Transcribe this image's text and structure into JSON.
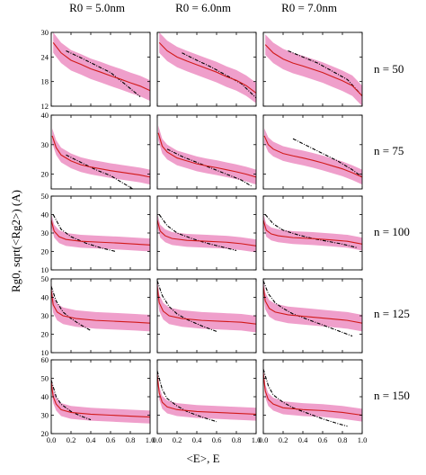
{
  "chart_data": {
    "type": "line",
    "col_titles": [
      "R0 = 5.0nm",
      "R0 = 6.0nm",
      "R0 = 7.0nm"
    ],
    "row_labels": [
      "n = 50",
      "n = 75",
      "n = 100",
      "n = 125",
      "n = 150"
    ],
    "xlabel": "<E>, E",
    "ylabel": "Rg0, sqrt(<Rg2>) (A)",
    "x_ticks": [
      0.0,
      0.2,
      0.4,
      0.6,
      0.8,
      1.0
    ],
    "xlim": [
      0,
      1
    ],
    "rows": [
      {
        "n": 50,
        "ylim": [
          12,
          30
        ],
        "yticks": [
          12,
          18,
          24,
          30
        ],
        "ytick_labels": [
          "12",
          "18",
          "24",
          "30"
        ]
      },
      {
        "n": 75,
        "ylim": [
          15,
          40
        ],
        "yticks": [
          20,
          30,
          40
        ],
        "ytick_labels": [
          "20",
          "30",
          "40"
        ]
      },
      {
        "n": 100,
        "ylim": [
          10,
          50
        ],
        "yticks": [
          10,
          20,
          30,
          40,
          50
        ],
        "ytick_labels": [
          "10",
          "20",
          "30",
          "40",
          "50"
        ]
      },
      {
        "n": 125,
        "ylim": [
          10,
          50
        ],
        "yticks": [
          10,
          20,
          30,
          40,
          50
        ],
        "ytick_labels": [
          "10",
          "20",
          "30",
          "40",
          "50"
        ]
      },
      {
        "n": 150,
        "ylim": [
          20,
          60
        ],
        "yticks": [
          20,
          30,
          40,
          50,
          60
        ],
        "ytick_labels": [
          "20",
          "30",
          "40",
          "50",
          "60"
        ]
      }
    ],
    "panels": [
      {
        "row": 0,
        "col": 0,
        "sim_x": [
          0.02,
          0.1,
          0.2,
          0.3,
          0.4,
          0.5,
          0.6,
          0.7,
          0.8,
          0.9,
          1.0
        ],
        "sim_y": [
          27.5,
          25,
          23.2,
          22.2,
          21.1,
          20.3,
          19.4,
          18.6,
          17.7,
          16.9,
          15.8
        ],
        "band_half": 2.5,
        "theory_x": [
          0.15,
          0.3,
          0.45,
          0.6,
          0.75,
          0.9
        ],
        "theory_y": [
          25.5,
          23.8,
          22,
          20.2,
          17.3,
          14.3
        ]
      },
      {
        "row": 0,
        "col": 1,
        "sim_x": [
          0.02,
          0.1,
          0.2,
          0.3,
          0.4,
          0.5,
          0.6,
          0.7,
          0.8,
          0.9,
          1.0
        ],
        "sim_y": [
          27.5,
          25.5,
          24,
          23,
          22.1,
          21.2,
          20.3,
          19.2,
          18.3,
          17,
          15.2
        ],
        "band_half": 2.5,
        "theory_x": [
          0.25,
          0.4,
          0.55,
          0.7,
          0.85,
          1.0
        ],
        "theory_y": [
          25,
          23.2,
          21.5,
          19.5,
          17.5,
          14
        ]
      },
      {
        "row": 0,
        "col": 2,
        "sim_x": [
          0.02,
          0.1,
          0.2,
          0.3,
          0.4,
          0.5,
          0.6,
          0.7,
          0.8,
          0.9,
          1.0
        ],
        "sim_y": [
          27,
          25,
          23.5,
          22.5,
          21.8,
          21,
          20.2,
          19.2,
          18.2,
          17,
          14.5
        ],
        "band_half": 2.5,
        "theory_x": [
          0.25,
          0.4,
          0.55,
          0.7,
          0.85,
          1.0
        ],
        "theory_y": [
          25.5,
          24,
          22.5,
          20.5,
          18.5,
          14.5
        ]
      },
      {
        "row": 1,
        "col": 0,
        "sim_x": [
          0.01,
          0.05,
          0.1,
          0.2,
          0.3,
          0.4,
          0.5,
          0.6,
          0.7,
          0.8,
          0.9,
          1.0
        ],
        "sim_y": [
          33,
          29,
          26.5,
          24.5,
          23.2,
          22.4,
          21.8,
          21.2,
          20.7,
          20.2,
          19.7,
          19
        ],
        "band_half": 2.5,
        "theory_x": [
          0.15,
          0.3,
          0.45,
          0.6,
          0.75,
          0.85
        ],
        "theory_y": [
          26.5,
          24,
          21.5,
          19.5,
          16.5,
          14.5
        ]
      },
      {
        "row": 1,
        "col": 1,
        "sim_x": [
          0.01,
          0.05,
          0.1,
          0.2,
          0.3,
          0.4,
          0.5,
          0.6,
          0.7,
          0.8,
          0.9,
          1.0
        ],
        "sim_y": [
          34,
          29.5,
          27.5,
          25.5,
          24.5,
          23.5,
          22.8,
          22.2,
          21.5,
          20.8,
          20,
          19
        ],
        "band_half": 2.5,
        "theory_x": [
          0.1,
          0.25,
          0.4,
          0.55,
          0.7,
          0.85,
          0.95
        ],
        "theory_y": [
          28.5,
          26,
          24,
          22,
          20,
          18,
          16
        ]
      },
      {
        "row": 1,
        "col": 2,
        "sim_x": [
          0.01,
          0.05,
          0.1,
          0.2,
          0.3,
          0.4,
          0.5,
          0.6,
          0.7,
          0.8,
          0.9,
          1.0
        ],
        "sim_y": [
          33,
          30,
          28.5,
          27,
          26.2,
          25.5,
          24.7,
          23.8,
          22.8,
          21.8,
          20.5,
          19
        ],
        "band_half": 2.5,
        "theory_x": [
          0.3,
          0.45,
          0.6,
          0.75,
          0.9,
          1.0
        ],
        "theory_y": [
          32,
          29.5,
          27,
          24.5,
          21.5,
          19
        ]
      },
      {
        "row": 2,
        "col": 0,
        "sim_x": [
          0.0,
          0.03,
          0.08,
          0.15,
          0.3,
          0.5,
          0.7,
          0.85,
          1.0
        ],
        "sim_y": [
          37,
          31,
          28,
          26.5,
          25.5,
          25,
          24.5,
          24,
          23.5
        ],
        "band_half": 3.5,
        "theory_x": [
          0.02,
          0.1,
          0.2,
          0.35,
          0.5,
          0.65
        ],
        "theory_y": [
          40,
          32,
          28,
          24.5,
          22,
          20
        ]
      },
      {
        "row": 2,
        "col": 1,
        "sim_x": [
          0.0,
          0.03,
          0.08,
          0.15,
          0.3,
          0.5,
          0.7,
          0.85,
          1.0
        ],
        "sim_y": [
          37,
          31,
          28.5,
          27,
          26,
          25.5,
          25,
          24.2,
          23
        ],
        "band_half": 3.5,
        "theory_x": [
          0.02,
          0.1,
          0.2,
          0.35,
          0.5,
          0.65,
          0.8
        ],
        "theory_y": [
          40,
          34,
          30,
          27,
          24.5,
          22.5,
          20.5
        ]
      },
      {
        "row": 2,
        "col": 2,
        "sim_x": [
          0.0,
          0.03,
          0.08,
          0.15,
          0.3,
          0.5,
          0.7,
          0.85,
          1.0
        ],
        "sim_y": [
          37,
          31.5,
          29.5,
          28.5,
          27.5,
          27,
          26.2,
          25.5,
          24
        ],
        "band_half": 3.5,
        "theory_x": [
          0.02,
          0.1,
          0.2,
          0.35,
          0.5,
          0.65,
          0.8,
          0.95
        ],
        "theory_y": [
          40,
          35,
          31.5,
          29,
          27,
          25.5,
          24,
          22
        ]
      },
      {
        "row": 3,
        "col": 0,
        "sim_x": [
          0.0,
          0.02,
          0.06,
          0.12,
          0.25,
          0.45,
          0.65,
          0.85,
          1.0
        ],
        "sim_y": [
          44,
          36,
          32,
          30,
          28.5,
          27.5,
          27,
          26.5,
          26
        ],
        "band_half": 4.5,
        "theory_x": [
          0.0,
          0.05,
          0.12,
          0.2,
          0.3,
          0.4
        ],
        "theory_y": [
          46,
          38,
          32,
          28.5,
          25,
          22
        ]
      },
      {
        "row": 3,
        "col": 1,
        "sim_x": [
          0.0,
          0.02,
          0.06,
          0.12,
          0.25,
          0.45,
          0.65,
          0.85,
          1.0
        ],
        "sim_y": [
          46,
          37,
          32.5,
          30,
          28.5,
          27.5,
          27,
          26.5,
          25.5
        ],
        "band_half": 4.5,
        "theory_x": [
          0.0,
          0.05,
          0.12,
          0.2,
          0.3,
          0.45,
          0.6
        ],
        "theory_y": [
          49,
          41,
          35,
          31,
          28,
          24.5,
          21.5
        ]
      },
      {
        "row": 3,
        "col": 2,
        "sim_x": [
          0.0,
          0.02,
          0.06,
          0.12,
          0.25,
          0.45,
          0.65,
          0.85,
          1.0
        ],
        "sim_y": [
          46,
          38,
          34,
          32,
          30.5,
          29.5,
          28.5,
          27.5,
          26
        ],
        "band_half": 4.5,
        "theory_x": [
          0.0,
          0.05,
          0.12,
          0.2,
          0.3,
          0.45,
          0.6,
          0.75,
          0.9
        ],
        "theory_y": [
          49,
          42,
          37,
          34,
          31,
          28,
          25,
          22,
          19
        ]
      },
      {
        "row": 4,
        "col": 0,
        "sim_x": [
          0.0,
          0.02,
          0.05,
          0.1,
          0.2,
          0.4,
          0.6,
          0.8,
          1.0
        ],
        "sim_y": [
          48,
          40,
          36,
          33,
          31.5,
          30.5,
          30,
          29.5,
          29
        ],
        "band_half": 3.5,
        "theory_x": [
          0.0,
          0.05,
          0.1,
          0.2,
          0.3,
          0.4
        ],
        "theory_y": [
          49,
          40,
          36,
          32,
          29.5,
          27.5
        ]
      },
      {
        "row": 4,
        "col": 1,
        "sim_x": [
          0.0,
          0.02,
          0.05,
          0.1,
          0.2,
          0.4,
          0.6,
          0.8,
          1.0
        ],
        "sim_y": [
          52,
          42,
          37,
          34.5,
          33,
          32,
          31.5,
          31,
          30.5
        ],
        "band_half": 3.5,
        "theory_x": [
          0.0,
          0.05,
          0.1,
          0.2,
          0.3,
          0.45,
          0.6
        ],
        "theory_y": [
          54,
          44,
          39,
          35,
          32,
          29,
          26.5
        ]
      },
      {
        "row": 4,
        "col": 2,
        "sim_x": [
          0.0,
          0.02,
          0.05,
          0.1,
          0.2,
          0.4,
          0.6,
          0.8,
          1.0
        ],
        "sim_y": [
          53,
          43,
          38.5,
          36,
          34,
          33,
          32.5,
          31.5,
          30
        ],
        "band_half": 3.5,
        "theory_x": [
          0.0,
          0.05,
          0.1,
          0.2,
          0.3,
          0.45,
          0.6,
          0.75,
          0.85
        ],
        "theory_y": [
          55,
          46,
          41,
          37,
          34,
          31,
          28,
          25.5,
          24
        ]
      }
    ],
    "colors": {
      "band": "#ef9fcb",
      "simulation": "#d11a1a",
      "theory_dark": "#000000",
      "theory_light": "#3a3ad6",
      "frame": "#000000"
    },
    "grid": false
  }
}
